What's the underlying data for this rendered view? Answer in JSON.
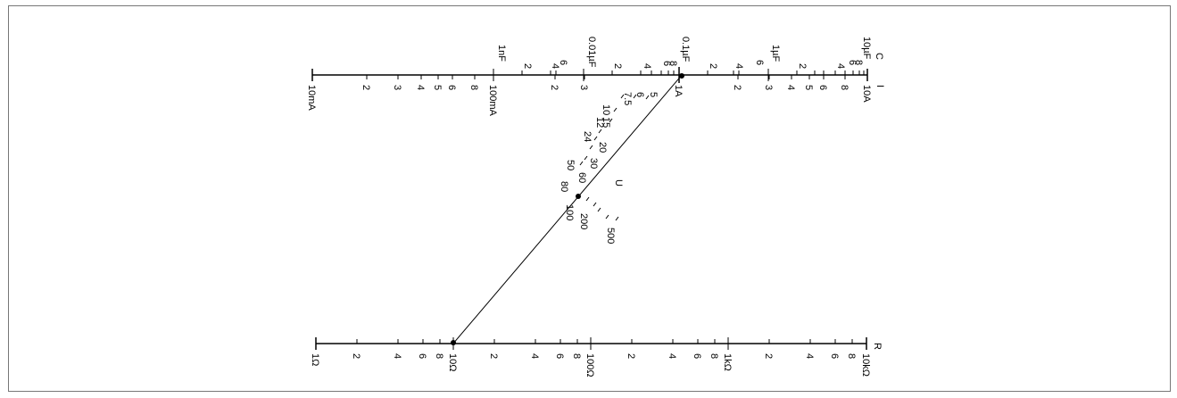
{
  "diagram": {
    "title": "",
    "scales": {
      "C": {
        "name": "C",
        "major_labels": [
          "1nF",
          "0.01µF",
          "0.1µF",
          "1µF",
          "10µF"
        ],
        "minor_labels": [
          "2",
          "4",
          "6",
          "8",
          "3"
        ]
      },
      "I": {
        "name": "I",
        "major_labels": [
          "10mA",
          "100mA",
          "1A",
          "10A"
        ],
        "minor_labels": [
          "2",
          "3",
          "4",
          "5",
          "6",
          "8"
        ]
      },
      "U": {
        "name": "U",
        "labels": [
          "5",
          "6",
          "7.5",
          "10",
          "12",
          "15",
          "20",
          "24",
          "30",
          "50",
          "60",
          "80",
          "100",
          "200",
          "500"
        ]
      },
      "R": {
        "name": "R",
        "major_labels": [
          "1Ω",
          "10Ω",
          "100Ω",
          "1kΩ",
          "10kΩ"
        ],
        "minor_labels": [
          "2",
          "4",
          "6",
          "8"
        ]
      }
    },
    "example_line": {
      "through": [
        "1A",
        "0.1µF",
        "~70",
        "10Ω"
      ]
    },
    "colors": {
      "ink": "#000000",
      "frame": "#777777",
      "background": "#ffffff"
    }
  }
}
